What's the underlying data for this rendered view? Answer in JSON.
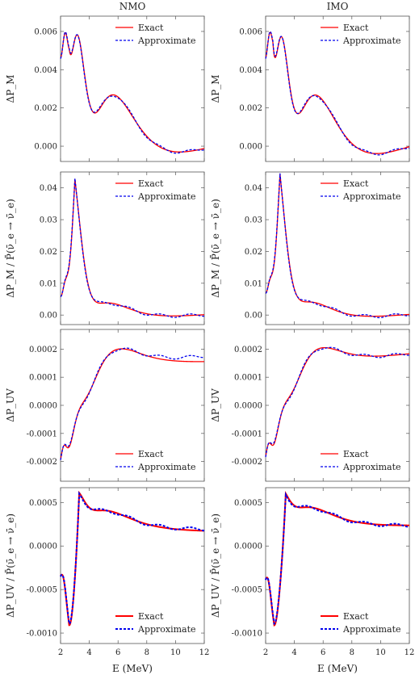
{
  "column_titles": [
    "NMO",
    "IMO"
  ],
  "xlabel": "E (MeV)",
  "legend": [
    "Exact",
    "Approximate"
  ],
  "colors": {
    "exact": "#ff0000",
    "approx": "#0000ee"
  },
  "chart_data": [
    {
      "type": "line",
      "ylabel": "ΔP_M",
      "col": "NMO",
      "xlim": [
        2,
        12
      ],
      "ylim": [
        -0.0008,
        0.0068
      ],
      "yticks": [
        0,
        0.002,
        0.004,
        0.006
      ],
      "ytick_labels": [
        "0.000",
        "0.002",
        "0.004",
        "0.006"
      ],
      "xticks": [
        2,
        4,
        6,
        8,
        10,
        12
      ],
      "legend_placement": "top-right",
      "model": {
        "shape": "peakdecay",
        "peak": 0.0062,
        "peak_x": 2.6,
        "rise": 0.0046,
        "tail": 0.00055,
        "decay": 1.9,
        "osc_amp": 0.0012,
        "osc_amp_end": 0.0009,
        "freq": 45,
        "phase": 0.3,
        "end_offset": 0.0
      }
    },
    {
      "type": "line",
      "ylabel": "ΔP_M",
      "col": "IMO",
      "xlim": [
        2,
        12
      ],
      "ylim": [
        -0.0008,
        0.0068
      ],
      "yticks": [
        0,
        0.002,
        0.004,
        0.006
      ],
      "ytick_labels": [
        "0.000",
        "0.002",
        "0.004",
        "0.006"
      ],
      "xticks": [
        2,
        4,
        6,
        8,
        10,
        12
      ],
      "legend_placement": "top-right",
      "model": {
        "shape": "peakdecay",
        "peak": 0.0062,
        "peak_x": 2.5,
        "rise": 0.0046,
        "tail": 0.00045,
        "decay": 1.9,
        "osc_amp": 0.0012,
        "osc_amp_end": 0.0009,
        "freq": 45,
        "phase": 0.0,
        "end_offset": 0.0
      }
    },
    {
      "type": "line",
      "ylabel": "ΔP_M / P̄(ν̄_e → ν̄_e)",
      "col": "NMO",
      "xlim": [
        2,
        12
      ],
      "ylim": [
        -0.003,
        0.045
      ],
      "yticks": [
        0,
        0.01,
        0.02,
        0.03,
        0.04
      ],
      "ytick_labels": [
        "0.00",
        "0.01",
        "0.02",
        "0.03",
        "0.04"
      ],
      "xticks": [
        2,
        4,
        6,
        8,
        10,
        12
      ],
      "legend_placement": "top-right",
      "model": {
        "shape": "sharppeak",
        "peak": 0.041,
        "peak_x": 3.0,
        "rise": 0.006,
        "tail": 0.001,
        "decay": 0.7,
        "osc_amp": 0.004,
        "osc_amp_end": 0.0012,
        "freq": 45,
        "phase": 0.2,
        "end_offset": 0.0
      }
    },
    {
      "type": "line",
      "ylabel": "ΔP_M / P̄(ν̄_e → ν̄_e)",
      "col": "IMO",
      "xlim": [
        2,
        12
      ],
      "ylim": [
        -0.003,
        0.045
      ],
      "yticks": [
        0,
        0.01,
        0.02,
        0.03,
        0.04
      ],
      "ytick_labels": [
        "0.00",
        "0.01",
        "0.02",
        "0.03",
        "0.04"
      ],
      "xticks": [
        2,
        4,
        6,
        8,
        10,
        12
      ],
      "legend_placement": "top-right",
      "model": {
        "shape": "sharppeak",
        "peak": 0.042,
        "peak_x": 3.0,
        "rise": 0.007,
        "tail": 0.0009,
        "decay": 0.7,
        "osc_amp": 0.004,
        "osc_amp_end": 0.0012,
        "freq": 45,
        "phase": 0.0,
        "end_offset": 0.0
      }
    },
    {
      "type": "line",
      "ylabel": "ΔP_UV",
      "col": "NMO",
      "xlim": [
        2,
        12
      ],
      "ylim": [
        -0.00027,
        0.00027
      ],
      "yticks": [
        -0.0002,
        -0.0001,
        0,
        0.0001,
        0.0002
      ],
      "ytick_labels": [
        "-0.0002",
        "-0.0001",
        "0.0000",
        "0.0001",
        "0.0002"
      ],
      "xticks": [
        2,
        4,
        6,
        8,
        10,
        12
      ],
      "legend_placement": "bottom-right",
      "model": {
        "shape": "sigmoid",
        "start": -0.00023,
        "plateau": 0.00019,
        "mid_x": 3.4,
        "width": 0.7,
        "osc_amp": 2e-05,
        "osc_amp_end": 2e-05,
        "freq": 45,
        "phase": 0.2,
        "end_offset": 2e-05
      }
    },
    {
      "type": "line",
      "ylabel": "ΔP_UV",
      "col": "IMO",
      "xlim": [
        2,
        12
      ],
      "ylim": [
        -0.00027,
        0.00027
      ],
      "yticks": [
        -0.0002,
        -0.0001,
        0,
        0.0001,
        0.0002
      ],
      "ytick_labels": [
        "-0.0002",
        "-0.0001",
        "0.0000",
        "0.0001",
        "0.0002"
      ],
      "xticks": [
        2,
        4,
        6,
        8,
        10,
        12
      ],
      "legend_placement": "bottom-right",
      "model": {
        "shape": "sigmoid",
        "start": -0.00023,
        "plateau": 0.000195,
        "mid_x": 3.3,
        "width": 0.7,
        "osc_amp": 2e-05,
        "osc_amp_end": 1.5e-05,
        "freq": 45,
        "phase": 0.0,
        "end_offset": 0.0
      }
    },
    {
      "type": "line",
      "ylabel": "ΔP_UV / P̄(ν̄_e → ν̄_e)",
      "col": "NMO",
      "xlim": [
        2,
        12
      ],
      "ylim": [
        -0.00112,
        0.00067
      ],
      "yticks": [
        -0.001,
        -0.0005,
        0,
        0.0005
      ],
      "ytick_labels": [
        "-0.0010",
        "-0.0005",
        "0.0000",
        "0.0005"
      ],
      "xticks": [
        2,
        4,
        6,
        8,
        10,
        12
      ],
      "legend_placement": "bottom-right",
      "model": {
        "shape": "dipjump",
        "start": -0.0003,
        "dip": -0.00085,
        "dip_x": 2.6,
        "jump_x": 3.3,
        "peak": 0.00056,
        "tail": 0.00019,
        "decay": 3.0,
        "osc_amp": 5e-05,
        "osc_amp_end": 2e-05,
        "freq": 45,
        "phase": 0.2,
        "end_offset": 2e-05
      }
    },
    {
      "type": "line",
      "ylabel": "ΔP_UV / P̄(ν̄_e → ν̄_e)",
      "col": "IMO",
      "xlim": [
        2,
        12
      ],
      "ylim": [
        -0.00112,
        0.00067
      ],
      "yticks": [
        -0.001,
        -0.0005,
        0,
        0.0005
      ],
      "ytick_labels": [
        "-0.0010",
        "-0.0005",
        "0.0000",
        "0.0005"
      ],
      "xticks": [
        2,
        4,
        6,
        8,
        10,
        12
      ],
      "legend_placement": "bottom-right",
      "model": {
        "shape": "dipjump",
        "start": -0.00035,
        "dip": -0.00085,
        "dip_x": 2.6,
        "jump_x": 3.4,
        "peak": 0.00057,
        "tail": 0.00023,
        "decay": 3.0,
        "osc_amp": 5e-05,
        "osc_amp_end": 2e-05,
        "freq": 45,
        "phase": 0.0,
        "end_offset": 0.0
      }
    }
  ]
}
